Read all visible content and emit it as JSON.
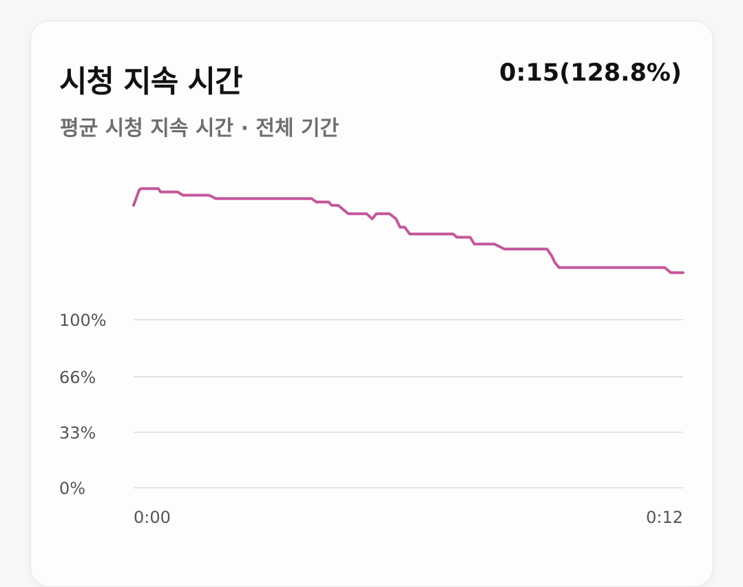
{
  "header": {
    "title": "시청 지속 시간",
    "summary": "0:15(128.8%)",
    "subtitle": "평균 시청 지속 시간 · 전체 기간"
  },
  "colors": {
    "line": "#c4579a",
    "grid": "#e2e2e2"
  },
  "chart_data": {
    "type": "line",
    "title": "시청 지속 시간",
    "xlabel": "",
    "ylabel": "",
    "x_ticks": [
      "0:00",
      "0:12"
    ],
    "y_ticks": [
      "0%",
      "33%",
      "66%",
      "100%"
    ],
    "y_tick_values": [
      0,
      33,
      66,
      100
    ],
    "xlim": [
      0,
      12
    ],
    "ylim": [
      0,
      180
    ],
    "grid": true,
    "legend": "none",
    "series": [
      {
        "x": [
          0,
          0.12,
          0.16,
          0.54,
          0.59,
          0.96,
          1.08,
          1.65,
          1.8,
          3.89,
          3.99,
          4.26,
          4.33,
          4.47,
          4.69,
          5.09,
          5.21,
          5.3,
          5.59,
          5.73,
          5.82,
          5.92,
          6.03,
          6.98,
          7.06,
          7.35,
          7.44,
          7.88,
          8.1,
          9.03,
          9.13,
          9.2,
          9.29,
          11.6,
          11.73,
          12.0
        ],
        "y": [
          168,
          177,
          178,
          178,
          176,
          176,
          174,
          174,
          172,
          172,
          170,
          170,
          168,
          168,
          163,
          163,
          160,
          163,
          163,
          160,
          155,
          155,
          151,
          151,
          149,
          149,
          145,
          145,
          142,
          142,
          138,
          134,
          131,
          131,
          128,
          128
        ]
      }
    ]
  }
}
